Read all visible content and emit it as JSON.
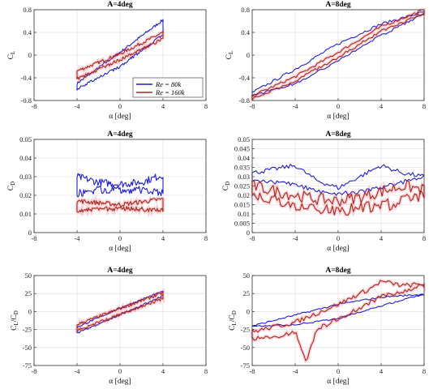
{
  "figure": {
    "x_axis_label": "α [deg]",
    "legend": [
      {
        "label": "Re = 80k",
        "color": "#1f1fd0"
      },
      {
        "label": "Re = 160k",
        "color": "#a52a1a"
      }
    ],
    "highlight_color": "#ff3355"
  },
  "chart_data": [
    {
      "type": "line",
      "row": "CL",
      "title": "A=4deg",
      "ylabel": "C",
      "ylabel_sub": "L",
      "xlim": [
        -8,
        8
      ],
      "xticks": [
        -8,
        -4,
        0,
        4,
        8
      ],
      "ylim": [
        -0.8,
        0.8
      ],
      "yticks": [
        -0.8,
        -0.4,
        0,
        0.4,
        0.8
      ],
      "ytick_labels": [
        "-0.8",
        "-0.4",
        "0",
        "0.4",
        "0.8"
      ],
      "grid": true,
      "legend_position": "bottom-right",
      "series": [
        {
          "name": "Re = 80k",
          "color": "#1f1fd0",
          "noise": 0.03,
          "upper": [
            [
              -4,
              -0.5
            ],
            [
              0,
              0.05
            ],
            [
              4,
              0.62
            ]
          ],
          "lower": [
            [
              -4,
              -0.6
            ],
            [
              0,
              -0.2
            ],
            [
              4,
              0.36
            ]
          ]
        },
        {
          "name": "Re = 160k",
          "color": "#a52a1a",
          "noise": 0.035,
          "upper": [
            [
              -4,
              -0.28
            ],
            [
              0,
              0.02
            ],
            [
              4,
              0.4
            ]
          ],
          "lower": [
            [
              -4,
              -0.42
            ],
            [
              0,
              -0.08
            ],
            [
              4,
              0.28
            ]
          ]
        }
      ]
    },
    {
      "type": "line",
      "row": "CL",
      "title": "A=8deg",
      "ylabel": "C",
      "ylabel_sub": "L",
      "xlim": [
        -8,
        8
      ],
      "xticks": [
        -8,
        -4,
        0,
        4,
        8
      ],
      "ylim": [
        -0.8,
        0.8
      ],
      "yticks": [
        -0.8,
        -0.4,
        0,
        0.4,
        0.8
      ],
      "ytick_labels": [
        "-0.8",
        "-0.4",
        "0",
        "0.4",
        "0.8"
      ],
      "grid": true,
      "series": [
        {
          "name": "Re = 80k",
          "color": "#1f1fd0",
          "noise": 0.03,
          "upper": [
            [
              -8,
              -0.66
            ],
            [
              -4,
              -0.25
            ],
            [
              0,
              0.2
            ],
            [
              4,
              0.55
            ],
            [
              8,
              0.76
            ]
          ],
          "lower": [
            [
              -8,
              -0.72
            ],
            [
              -4,
              -0.5
            ],
            [
              0,
              -0.1
            ],
            [
              4,
              0.35
            ],
            [
              8,
              0.72
            ]
          ]
        },
        {
          "name": "Re = 160k",
          "color": "#a52a1a",
          "noise": 0.03,
          "upper": [
            [
              -8,
              -0.72
            ],
            [
              -4,
              -0.38
            ],
            [
              0,
              0.05
            ],
            [
              4,
              0.5
            ],
            [
              8,
              0.8
            ]
          ],
          "lower": [
            [
              -8,
              -0.78
            ],
            [
              -4,
              -0.45
            ],
            [
              0,
              -0.04
            ],
            [
              4,
              0.42
            ],
            [
              8,
              0.74
            ]
          ]
        }
      ]
    },
    {
      "type": "line",
      "row": "CD",
      "title": "A=4deg",
      "ylabel": "C",
      "ylabel_sub": "D",
      "xlim": [
        -8,
        8
      ],
      "xticks": [
        -8,
        -4,
        0,
        4,
        8
      ],
      "ylim": [
        0,
        0.05
      ],
      "yticks": [
        0,
        0.01,
        0.02,
        0.03,
        0.04,
        0.05
      ],
      "ytick_labels": [
        "0",
        "0.01",
        "0.02",
        "0.03",
        "0.04",
        "0.05"
      ],
      "grid": true,
      "series": [
        {
          "name": "Re = 80k",
          "color": "#1f1fd0",
          "noise": 0.0025,
          "upper": [
            [
              -4,
              0.03
            ],
            [
              -2,
              0.027
            ],
            [
              0,
              0.026
            ],
            [
              2,
              0.027
            ],
            [
              4,
              0.031
            ]
          ],
          "lower": [
            [
              -4,
              0.021
            ],
            [
              -2,
              0.023
            ],
            [
              0,
              0.023
            ],
            [
              2,
              0.023
            ],
            [
              4,
              0.021
            ]
          ]
        },
        {
          "name": "Re = 160k",
          "color": "#a52a1a",
          "noise": 0.0015,
          "upper": [
            [
              -4,
              0.017
            ],
            [
              0,
              0.015
            ],
            [
              4,
              0.018
            ]
          ],
          "lower": [
            [
              -4,
              0.012
            ],
            [
              0,
              0.013
            ],
            [
              4,
              0.012
            ]
          ]
        }
      ]
    },
    {
      "type": "line",
      "row": "CD",
      "title": "A=8deg",
      "ylabel": "C",
      "ylabel_sub": "D",
      "xlim": [
        -8,
        8
      ],
      "xticks": [
        -8,
        -4,
        0,
        4,
        8
      ],
      "ylim": [
        0,
        0.05
      ],
      "yticks": [
        0,
        0.005,
        0.01,
        0.015,
        0.02,
        0.025,
        0.03,
        0.035,
        0.04,
        0.045,
        0.05
      ],
      "ytick_labels": [
        "0",
        "0.005",
        "0.01",
        "0.015",
        "0.02",
        "0.025",
        "0.03",
        "0.035",
        "0.04",
        "0.045",
        "0.05"
      ],
      "grid": true,
      "series": [
        {
          "name": "Re = 80k",
          "color": "#1f1fd0",
          "noise": 0.0015,
          "upper": [
            [
              -8,
              0.032
            ],
            [
              -4,
              0.036
            ],
            [
              -2,
              0.028
            ],
            [
              0,
              0.024
            ],
            [
              2,
              0.03
            ],
            [
              4,
              0.036
            ],
            [
              6,
              0.032
            ],
            [
              8,
              0.03
            ]
          ],
          "lower": [
            [
              -8,
              0.028
            ],
            [
              -4,
              0.026
            ],
            [
              -2,
              0.022
            ],
            [
              0,
              0.021
            ],
            [
              2,
              0.022
            ],
            [
              4,
              0.024
            ],
            [
              6,
              0.027
            ],
            [
              8,
              0.03
            ]
          ]
        },
        {
          "name": "Re = 160k",
          "color": "#a52a1a",
          "noise": 0.004,
          "upper": [
            [
              -8,
              0.025
            ],
            [
              -4,
              0.02
            ],
            [
              -2,
              0.018
            ],
            [
              0,
              0.017
            ],
            [
              2,
              0.019
            ],
            [
              4,
              0.022
            ],
            [
              6,
              0.025
            ],
            [
              8,
              0.023
            ]
          ],
          "lower": [
            [
              -8,
              0.02
            ],
            [
              -4,
              0.015
            ],
            [
              0,
              0.012
            ],
            [
              4,
              0.014
            ],
            [
              8,
              0.02
            ]
          ]
        }
      ]
    },
    {
      "type": "line",
      "row": "CLCD",
      "title": "A=4deg",
      "ylabel": "C",
      "ylabel_sub": "L",
      "ylabel_mid": "/C",
      "ylabel_sub2": "D",
      "xlim": [
        -8,
        8
      ],
      "xticks": [
        -8,
        -4,
        0,
        4,
        8
      ],
      "ylim": [
        -75,
        50
      ],
      "yticks": [
        -75,
        -50,
        -25,
        0,
        25,
        50
      ],
      "ytick_labels": [
        "-75",
        "-50",
        "-25",
        "0",
        "25",
        "50"
      ],
      "grid": true,
      "series": [
        {
          "name": "Re = 80k",
          "color": "#1f1fd0",
          "noise": 1.5,
          "upper": [
            [
              -4,
              -22
            ],
            [
              0,
              5
            ],
            [
              4,
              28
            ]
          ],
          "lower": [
            [
              -4,
              -30
            ],
            [
              0,
              -5
            ],
            [
              4,
              22
            ]
          ]
        },
        {
          "name": "Re = 160k",
          "color": "#a52a1a",
          "noise": 2.5,
          "upper": [
            [
              -4,
              -18
            ],
            [
              0,
              4
            ],
            [
              4,
              26
            ]
          ],
          "lower": [
            [
              -4,
              -26
            ],
            [
              0,
              -4
            ],
            [
              4,
              18
            ]
          ]
        }
      ]
    },
    {
      "type": "line",
      "row": "CLCD",
      "title": "A=8deg",
      "ylabel": "C",
      "ylabel_sub": "L",
      "ylabel_mid": "/C",
      "ylabel_sub2": "D",
      "xlim": [
        -8,
        8
      ],
      "xticks": [
        -8,
        -4,
        0,
        4,
        8
      ],
      "ylim": [
        -75,
        50
      ],
      "yticks": [
        -75,
        -50,
        -25,
        0,
        25,
        50
      ],
      "ytick_labels": [
        "-75",
        "-50",
        "-25",
        "0",
        "25",
        "50"
      ],
      "grid": true,
      "series": [
        {
          "name": "Re = 80k",
          "color": "#1f1fd0",
          "noise": 1.5,
          "upper": [
            [
              -8,
              -20
            ],
            [
              -4,
              -5
            ],
            [
              0,
              10
            ],
            [
              4,
              20
            ],
            [
              8,
              24
            ]
          ],
          "lower": [
            [
              -8,
              -20
            ],
            [
              -4,
              -18
            ],
            [
              0,
              -10
            ],
            [
              4,
              8
            ],
            [
              8,
              24
            ]
          ]
        },
        {
          "name": "Re = 160k",
          "color": "#a52a1a",
          "noise": 4,
          "upper": [
            [
              -8,
              -28
            ],
            [
              -4,
              -15
            ],
            [
              0,
              10
            ],
            [
              3,
              32
            ],
            [
              4,
              42
            ],
            [
              6,
              36
            ],
            [
              8,
              38
            ]
          ],
          "lower": [
            [
              -8,
              -38
            ],
            [
              -6,
              -35
            ],
            [
              -4,
              -28
            ],
            [
              -3,
              -70
            ],
            [
              -2,
              -25
            ],
            [
              0,
              -10
            ],
            [
              4,
              20
            ],
            [
              8,
              36
            ]
          ]
        }
      ]
    }
  ]
}
